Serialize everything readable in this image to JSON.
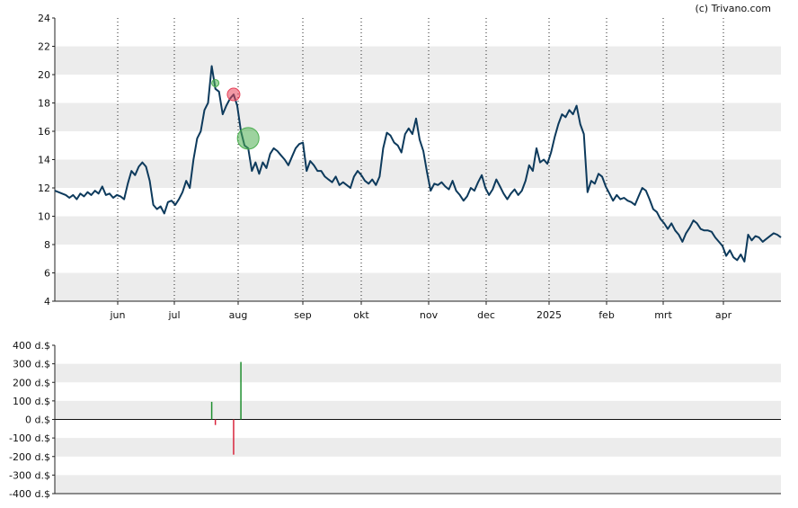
{
  "chart_data": [
    {
      "type": "line",
      "title": "",
      "credit": "(c) Trivano.com",
      "ylim": [
        4,
        24
      ],
      "y_ticks": [
        "4",
        "6",
        "8",
        "10",
        "12",
        "14",
        "16",
        "18",
        "20",
        "22",
        "24"
      ],
      "x_tick_labels": [
        "jun",
        "jul",
        "aug",
        "sep",
        "okt",
        "nov",
        "dec",
        "2025",
        "feb",
        "mrt",
        "apr"
      ],
      "grid": true,
      "line_color": "#0d3a5c",
      "series": [
        {
          "values": [
            11.8,
            11.7,
            11.6,
            11.5,
            11.3,
            11.5,
            11.2,
            11.6,
            11.4,
            11.7,
            11.5,
            11.8,
            11.6,
            12.1,
            11.5,
            11.6,
            11.3,
            11.5,
            11.4,
            11.2,
            12.3,
            13.2,
            12.9,
            13.5,
            13.8,
            13.5,
            12.5,
            10.8,
            10.5,
            10.7,
            10.2,
            11.0,
            11.1,
            10.8,
            11.2,
            11.7,
            12.5,
            12.0,
            14.0,
            15.5,
            16.0,
            17.5,
            18.0,
            20.6,
            19.0,
            18.8,
            17.2,
            17.8,
            18.3,
            18.6,
            17.8,
            16.0,
            15.0,
            14.8,
            13.2,
            13.8,
            13.0,
            13.8,
            13.4,
            14.4,
            14.8,
            14.6,
            14.3,
            14.0,
            13.6,
            14.2,
            14.8,
            15.1,
            15.2,
            13.2,
            13.9,
            13.6,
            13.2,
            13.2,
            12.8,
            12.6,
            12.4,
            12.8,
            12.2,
            12.4,
            12.2,
            12.0,
            12.8,
            13.2,
            12.9,
            12.5,
            12.3,
            12.6,
            12.2,
            12.8,
            14.8,
            15.9,
            15.7,
            15.2,
            15.0,
            14.5,
            15.8,
            16.2,
            15.8,
            16.9,
            15.4,
            14.6,
            13.1,
            11.8,
            12.3,
            12.2,
            12.4,
            12.1,
            11.9,
            12.5,
            11.8,
            11.5,
            11.1,
            11.4,
            12.0,
            11.8,
            12.4,
            12.9,
            12.0,
            11.5,
            11.9,
            12.6,
            12.1,
            11.6,
            11.2,
            11.6,
            11.9,
            11.5,
            11.8,
            12.5,
            13.6,
            13.2,
            14.8,
            13.8,
            14.0,
            13.7,
            14.5,
            15.6,
            16.5,
            17.2,
            17.0,
            17.5,
            17.2,
            17.8,
            16.5,
            15.8,
            11.7,
            12.5,
            12.3,
            13.0,
            12.8,
            12.1,
            11.6,
            11.1,
            11.5,
            11.2,
            11.3,
            11.1,
            11.0,
            10.8,
            11.4,
            12.0,
            11.8,
            11.2,
            10.5,
            10.3,
            9.8,
            9.5,
            9.1,
            9.5,
            9.0,
            8.7,
            8.2,
            8.8,
            9.2,
            9.7,
            9.5,
            9.1,
            9.0,
            9.0,
            8.9,
            8.5,
            8.2,
            7.9,
            7.2,
            7.6,
            7.1,
            6.9,
            7.3,
            6.8,
            8.7,
            8.3,
            8.6,
            8.5,
            8.2,
            8.4,
            8.6,
            8.8,
            8.7,
            8.5
          ]
        }
      ],
      "markers": [
        {
          "type": "buy",
          "index": 44,
          "value": 19.4,
          "size": "small",
          "color": "#4caf50"
        },
        {
          "type": "sell",
          "index": 49,
          "value": 18.6,
          "size": "medium",
          "color": "#e8435a"
        },
        {
          "type": "buy",
          "index": 53,
          "value": 15.5,
          "size": "large",
          "color": "#4caf50"
        }
      ]
    },
    {
      "type": "bar",
      "title": "",
      "ylim": [
        -400,
        400
      ],
      "y_ticks": [
        "-400 d.$",
        "-300 d.$",
        "-200 d.$",
        "-100 d.$",
        "0 d.$",
        "100 d.$",
        "200 d.$",
        "300 d.$",
        "400 d.$"
      ],
      "grid": true,
      "bars": [
        {
          "index": 43,
          "value": 95,
          "color": "#1f8f2f"
        },
        {
          "index": 44,
          "value": -30,
          "color": "#d9253d"
        },
        {
          "index": 49,
          "value": -190,
          "color": "#d9253d"
        },
        {
          "index": 51,
          "value": 310,
          "color": "#1f8f2f"
        }
      ]
    }
  ]
}
